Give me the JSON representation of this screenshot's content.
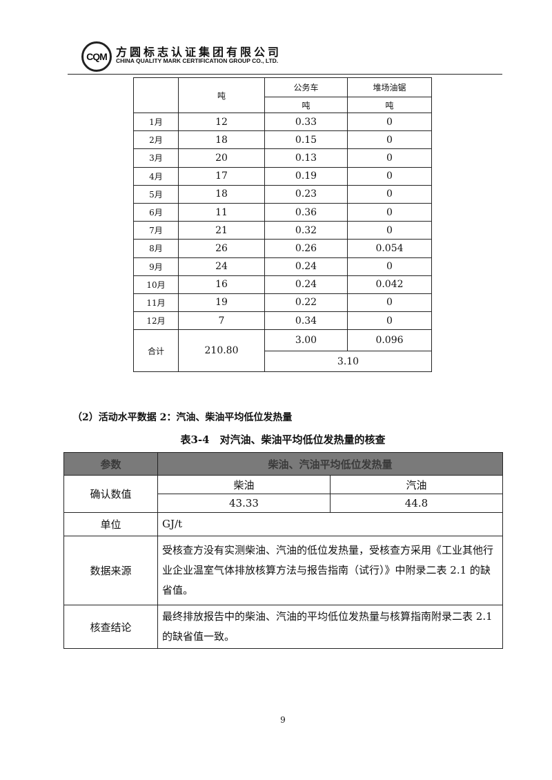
{
  "header": {
    "logo_text": "CQM",
    "company_cn": "方圆标志认证集团有限公司",
    "company_en": "CHINA QUALITY MARK CERTIFICATION GROUP CO., LTD."
  },
  "table1": {
    "col2_unit": "吨",
    "col3_header": "公务车",
    "col3_unit": "吨",
    "col4_header": "堆场油锯",
    "col4_unit": "吨",
    "rows": [
      [
        "1月",
        "12",
        "0.33",
        "0"
      ],
      [
        "2月",
        "18",
        "0.15",
        "0"
      ],
      [
        "3月",
        "20",
        "0.13",
        "0"
      ],
      [
        "4月",
        "17",
        "0.19",
        "0"
      ],
      [
        "5月",
        "18",
        "0.23",
        "0"
      ],
      [
        "6月",
        "11",
        "0.36",
        "0"
      ],
      [
        "7月",
        "21",
        "0.32",
        "0"
      ],
      [
        "8月",
        "26",
        "0.26",
        "0.054"
      ],
      [
        "9月",
        "24",
        "0.24",
        "0"
      ],
      [
        "10月",
        "16",
        "0.24",
        "0.042"
      ],
      [
        "11月",
        "19",
        "0.22",
        "0"
      ],
      [
        "12月",
        "7",
        "0.34",
        "0"
      ]
    ],
    "total": {
      "label": "合计",
      "col2": "210.80",
      "col3": "3.00",
      "col4": "0.096",
      "combined": "3.10"
    }
  },
  "section_heading": "（2）活动水平数据 2：汽油、柴油平均低位发热量",
  "caption": "表3-4　对汽油、柴油平均低位发热量的核查",
  "table2": {
    "header": [
      "参数",
      "柴油、汽油平均低位发热量"
    ],
    "confirmed_label": "确认数值",
    "diesel": "柴油",
    "gasoline": "汽油",
    "diesel_value": "43.33",
    "gasoline_value": "44.8",
    "unit_label": "单位",
    "unit_value": "GJ/t",
    "source_label": "数据来源",
    "source_text": "受核查方没有实测柴油、汽油的低位发热量，受核查方采用《工业其他行业企业温室气体排放核算方法与报告指南（试行）》中附录二表 2.1 的缺省值。",
    "conclusion_label": "核查结论",
    "conclusion_text": "最终排放报告中的柴油、汽油的平均低位发热量与核算指南附录二表 2.1 的缺省值一致。"
  },
  "page_number": "9"
}
